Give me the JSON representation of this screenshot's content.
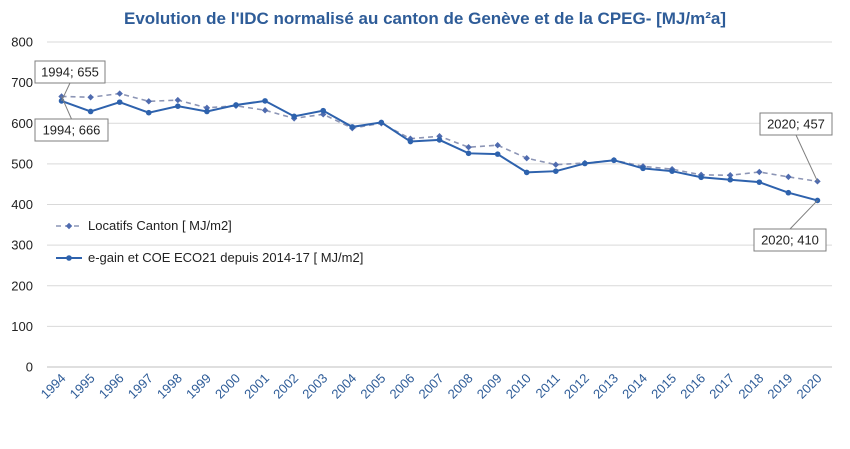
{
  "chart_data": {
    "type": "line",
    "title": "Evolution de l'IDC normalisé au canton de Genève et de la CPEG- [MJ/m²a]",
    "xlabel": "",
    "ylabel": "",
    "x": [
      "1994",
      "1995",
      "1996",
      "1997",
      "1998",
      "1999",
      "2000",
      "2001",
      "2002",
      "2003",
      "2004",
      "2005",
      "2006",
      "2007",
      "2008",
      "2009",
      "2010",
      "2011",
      "2012",
      "2013",
      "2014",
      "2015",
      "2016",
      "2017",
      "2018",
      "2019",
      "2020"
    ],
    "ylim": [
      0,
      800
    ],
    "yticks": [
      0,
      100,
      200,
      300,
      400,
      500,
      600,
      700,
      800
    ],
    "grid": true,
    "legend_position": "left",
    "series": [
      {
        "name": "Locatifs Canton [ MJ/m2]",
        "style": "dashed",
        "color": "#8C95B5",
        "marker_color": "#4F6BAF",
        "values": [
          666,
          664,
          673,
          654,
          657,
          638,
          643,
          632,
          612,
          622,
          588,
          600,
          562,
          568,
          541,
          546,
          514,
          498,
          502,
          509,
          494,
          487,
          473,
          472,
          480,
          468,
          457
        ]
      },
      {
        "name": "e-gain et COE ECO21 depuis 2014-17 [ MJ/m2]",
        "style": "solid",
        "color": "#2E62AD",
        "marker_color": "#2E62AD",
        "values": [
          655,
          629,
          652,
          626,
          642,
          629,
          645,
          655,
          617,
          631,
          591,
          602,
          555,
          559,
          526,
          524,
          479,
          482,
          501,
          509,
          489,
          482,
          467,
          461,
          455,
          429,
          410
        ]
      }
    ],
    "annotations": [
      {
        "text": "1994; 655",
        "series": 1,
        "x": "1994"
      },
      {
        "text": "1994; 666",
        "series": 0,
        "x": "1994"
      },
      {
        "text": "2020; 457",
        "series": 0,
        "x": "2020"
      },
      {
        "text": "2020; 410",
        "series": 1,
        "x": "2020"
      }
    ]
  }
}
